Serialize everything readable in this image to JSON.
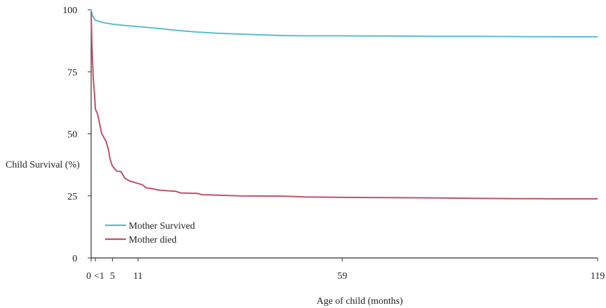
{
  "chart_data": {
    "type": "line",
    "title": "",
    "xlabel": "Age of child (months)",
    "ylabel": "Child Survival (%)",
    "xlim": [
      0,
      119
    ],
    "ylim": [
      0,
      100
    ],
    "x_ticks": [
      {
        "value": 0,
        "label": "0"
      },
      {
        "value": 1,
        "label": "<1"
      },
      {
        "value": 5,
        "label": "5"
      },
      {
        "value": 11,
        "label": "11"
      },
      {
        "value": 59,
        "label": "59"
      },
      {
        "value": 119,
        "label": "119"
      }
    ],
    "y_ticks": [
      {
        "value": 0,
        "label": "0"
      },
      {
        "value": 25,
        "label": "25"
      },
      {
        "value": 50,
        "label": "50"
      },
      {
        "value": 75,
        "label": "75"
      },
      {
        "value": 100,
        "label": "100"
      }
    ],
    "grid": false,
    "legend_position": "bottom-left",
    "series": [
      {
        "name": "Mother Survived",
        "color": "#5bbcd1",
        "points": [
          [
            0,
            100
          ],
          [
            0.3,
            97.8
          ],
          [
            0.7,
            96.5
          ],
          [
            1,
            95.8
          ],
          [
            2,
            95.2
          ],
          [
            3,
            94.8
          ],
          [
            5,
            94.2
          ],
          [
            8,
            93.6
          ],
          [
            11,
            93.2
          ],
          [
            15,
            92.6
          ],
          [
            20,
            91.7
          ],
          [
            25,
            91.0
          ],
          [
            30,
            90.5
          ],
          [
            35,
            90.2
          ],
          [
            40,
            89.9
          ],
          [
            45,
            89.6
          ],
          [
            50,
            89.5
          ],
          [
            59,
            89.5
          ],
          [
            70,
            89.4
          ],
          [
            80,
            89.3
          ],
          [
            90,
            89.3
          ],
          [
            100,
            89.2
          ],
          [
            110,
            89.1
          ],
          [
            119,
            89.1
          ]
        ]
      },
      {
        "name": "Mother died",
        "color": "#c0506a",
        "points": [
          [
            0,
            99
          ],
          [
            0.2,
            85
          ],
          [
            0.5,
            72
          ],
          [
            0.8,
            66
          ],
          [
            1,
            60
          ],
          [
            1.5,
            58
          ],
          [
            2,
            54
          ],
          [
            2.5,
            50
          ],
          [
            3,
            48.5
          ],
          [
            3.5,
            47
          ],
          [
            4,
            44
          ],
          [
            4.5,
            39.5
          ],
          [
            5,
            37
          ],
          [
            6,
            35
          ],
          [
            7,
            34.8
          ],
          [
            8,
            32
          ],
          [
            9,
            31
          ],
          [
            10,
            30.5
          ],
          [
            11,
            30
          ],
          [
            12,
            29.5
          ],
          [
            13,
            28.2
          ],
          [
            14,
            28
          ],
          [
            16,
            27.3
          ],
          [
            20,
            26.8
          ],
          [
            21,
            26.2
          ],
          [
            25,
            26.0
          ],
          [
            26,
            25.5
          ],
          [
            30,
            25.3
          ],
          [
            35,
            25.0
          ],
          [
            45,
            24.9
          ],
          [
            50,
            24.6
          ],
          [
            59,
            24.4
          ],
          [
            70,
            24.3
          ],
          [
            80,
            24.2
          ],
          [
            90,
            24.0
          ],
          [
            100,
            23.9
          ],
          [
            110,
            23.8
          ],
          [
            119,
            23.8
          ]
        ]
      }
    ]
  }
}
